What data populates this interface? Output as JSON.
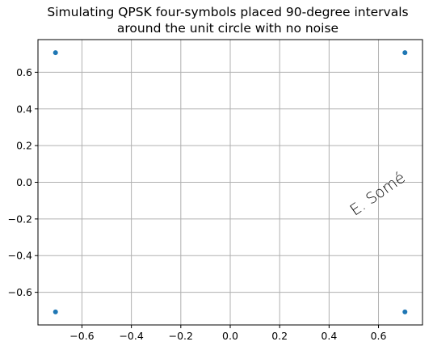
{
  "chart_data": {
    "type": "scatter",
    "title_lines": [
      "Simulating QPSK four-symbols placed 90-degree intervals",
      "around the unit circle with no noise"
    ],
    "xlabel": "",
    "ylabel": "",
    "xlim": [
      -0.778,
      0.778
    ],
    "ylim": [
      -0.778,
      0.778
    ],
    "x_ticks": [
      -0.6,
      -0.4,
      -0.2,
      0.0,
      0.2,
      0.4,
      0.6
    ],
    "x_tick_labels": [
      "−0.6",
      "−0.4",
      "−0.2",
      "0.0",
      "0.2",
      "0.4",
      "0.6"
    ],
    "y_ticks": [
      -0.6,
      -0.4,
      -0.2,
      0.0,
      0.2,
      0.4,
      0.6
    ],
    "y_tick_labels": [
      "−0.6",
      "−0.4",
      "−0.2",
      "0.0",
      "0.2",
      "0.4",
      "0.6"
    ],
    "grid": true,
    "series": [
      {
        "points": [
          {
            "x": -0.707,
            "y": 0.707
          },
          {
            "x": 0.707,
            "y": 0.707
          },
          {
            "x": -0.707,
            "y": -0.707
          },
          {
            "x": 0.707,
            "y": -0.707
          }
        ]
      }
    ],
    "marker_color": "#1f77b4",
    "watermark": "E. Somé"
  }
}
